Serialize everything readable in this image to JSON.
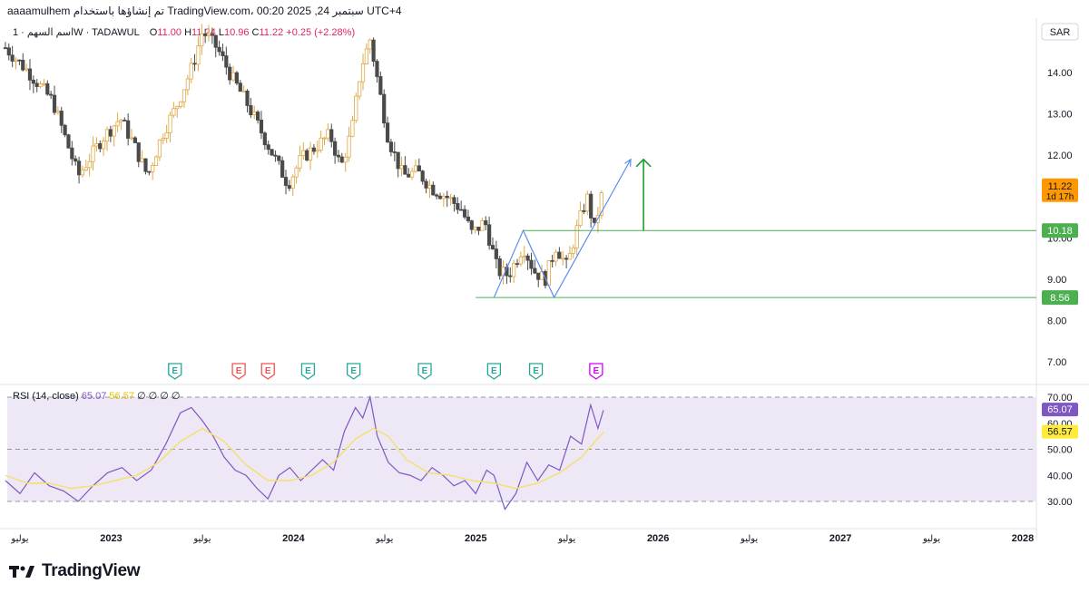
{
  "header": {
    "topline": "aaaamulhem تم إنشاؤها باستخدام TradingView.com، 00:20 2025 ,24 سبتمبر UTC+4",
    "symbol": "اسم السهم · 1W · TADAWUL",
    "open_label": "O",
    "open": "11.00",
    "high_label": "H",
    "high": "11.24",
    "low_label": "L",
    "low": "10.96",
    "close_label": "C",
    "close": "11.22",
    "change": "+0.25 (+2.28%)"
  },
  "rsi_legend": {
    "label": "RSI (14, close)",
    "value_rsi": "65.07",
    "value_ma": "56.57",
    "extras": "∅ ∅ ∅ ∅"
  },
  "branding": {
    "logo_text": "TradingView"
  },
  "colors": {
    "up": "#f7c878",
    "up_border": "#e0a847",
    "down": "#4a4a4a",
    "rsi": "#7e57c2",
    "rsi_ma": "#f5e06a",
    "rsi_band": "#ede7f6",
    "green": "#4caf50",
    "arrow_blue": "#5b8def",
    "label_orange": "#ff9800",
    "earn_green": "#26a69a",
    "earn_red": "#ef5350",
    "earn_purple": "#d500f9"
  },
  "chart_data": [
    {
      "type": "candlestick",
      "currency": "SAR",
      "y_ticks": [
        "14.00",
        "13.00",
        "12.00",
        "10.00",
        "9.00",
        "8.00",
        "7.00"
      ],
      "x_labels": [
        "يوليو",
        "2023",
        "يوليو",
        "2024",
        "يوليو",
        "2025",
        "يوليو",
        "2026",
        "يوليو",
        "2027",
        "يوليو",
        "2028"
      ],
      "x_label_dates": [
        2022.5,
        2023.0,
        2023.5,
        2024.0,
        2024.5,
        2025.0,
        2025.5,
        2026.0,
        2026.5,
        2027.0,
        2027.5,
        2028.0
      ],
      "ylim": [
        6.6,
        15.2
      ],
      "current_price": "11.22",
      "countdown": "1d 17h",
      "levels": [
        {
          "price": 10.18,
          "label": "10.18"
        },
        {
          "price": 8.56,
          "label": "8.56"
        }
      ],
      "path_points": [
        {
          "date": 2022.42,
          "price": 14.6
        },
        {
          "date": 2022.55,
          "price": 14.0
        },
        {
          "date": 2022.68,
          "price": 13.3
        },
        {
          "date": 2022.82,
          "price": 11.5
        },
        {
          "date": 2022.95,
          "price": 12.4
        },
        {
          "date": 2023.05,
          "price": 12.9
        },
        {
          "date": 2023.12,
          "price": 12.3
        },
        {
          "date": 2023.2,
          "price": 11.5
        },
        {
          "date": 2023.28,
          "price": 12.5
        },
        {
          "date": 2023.36,
          "price": 13.2
        },
        {
          "date": 2023.45,
          "price": 14.2
        },
        {
          "date": 2023.5,
          "price": 15.0
        },
        {
          "date": 2023.58,
          "price": 14.6
        },
        {
          "date": 2023.66,
          "price": 13.9
        },
        {
          "date": 2023.74,
          "price": 13.3
        },
        {
          "date": 2023.82,
          "price": 12.6
        },
        {
          "date": 2023.9,
          "price": 11.9
        },
        {
          "date": 2023.97,
          "price": 11.3
        },
        {
          "date": 2024.04,
          "price": 11.9
        },
        {
          "date": 2024.12,
          "price": 12.2
        },
        {
          "date": 2024.2,
          "price": 12.5
        },
        {
          "date": 2024.26,
          "price": 11.7
        },
        {
          "date": 2024.32,
          "price": 12.6
        },
        {
          "date": 2024.37,
          "price": 14.1
        },
        {
          "date": 2024.42,
          "price": 14.8
        },
        {
          "date": 2024.47,
          "price": 13.6
        },
        {
          "date": 2024.52,
          "price": 12.4
        },
        {
          "date": 2024.6,
          "price": 11.5
        },
        {
          "date": 2024.68,
          "price": 11.6
        },
        {
          "date": 2024.76,
          "price": 11.2
        },
        {
          "date": 2024.84,
          "price": 11.0
        },
        {
          "date": 2024.92,
          "price": 10.7
        },
        {
          "date": 2024.98,
          "price": 10.1
        },
        {
          "date": 2025.05,
          "price": 10.4
        },
        {
          "date": 2025.12,
          "price": 9.2
        },
        {
          "date": 2025.18,
          "price": 9.1
        },
        {
          "date": 2025.26,
          "price": 9.8
        },
        {
          "date": 2025.32,
          "price": 9.2
        },
        {
          "date": 2025.38,
          "price": 9.0
        },
        {
          "date": 2025.44,
          "price": 9.8
        },
        {
          "date": 2025.5,
          "price": 9.3
        },
        {
          "date": 2025.56,
          "price": 10.3
        },
        {
          "date": 2025.61,
          "price": 11.0
        },
        {
          "date": 2025.65,
          "price": 10.2
        },
        {
          "date": 2025.7,
          "price": 11.22
        }
      ],
      "earnings_markers": [
        {
          "date": 2023.35,
          "label": "E",
          "color": "green"
        },
        {
          "date": 2023.7,
          "label": "E",
          "color": "red"
        },
        {
          "date": 2023.86,
          "label": "E",
          "color": "red"
        },
        {
          "date": 2024.08,
          "label": "E",
          "color": "green"
        },
        {
          "date": 2024.33,
          "label": "E",
          "color": "green"
        },
        {
          "date": 2024.72,
          "label": "E",
          "color": "green"
        },
        {
          "date": 2025.1,
          "label": "E",
          "color": "green"
        },
        {
          "date": 2025.33,
          "label": "E",
          "color": "green"
        },
        {
          "date": 2025.66,
          "label": "E",
          "color": "purple"
        }
      ],
      "annotations": {
        "double_bottom": [
          {
            "date": 2025.1,
            "price": 8.56
          },
          {
            "date": 2025.26,
            "price": 10.18
          },
          {
            "date": 2025.43,
            "price": 8.56
          },
          {
            "date": 2025.85,
            "price": 11.9
          }
        ],
        "green_arrow": {
          "date": 2025.92,
          "from": 10.18,
          "to": 11.9
        },
        "level_line_starts": {
          "10.18": 2025.26,
          "8.56": 2025.0
        }
      }
    },
    {
      "type": "line",
      "title": "RSI (14, close)",
      "y_ticks": [
        "70.00",
        "60.00",
        "50.00",
        "40.00",
        "30.00"
      ],
      "ylim": [
        20,
        72
      ],
      "band": [
        30,
        70
      ],
      "middle": 50,
      "rsi_last": "65.07",
      "ma_last": "56.57",
      "series": [
        {
          "values": [
            {
              "date": 2022.42,
              "value": 38
            },
            {
              "date": 2022.5,
              "value": 33
            },
            {
              "date": 2022.58,
              "value": 41
            },
            {
              "date": 2022.66,
              "value": 36
            },
            {
              "date": 2022.74,
              "value": 34
            },
            {
              "date": 2022.82,
              "value": 30
            },
            {
              "date": 2022.9,
              "value": 36
            },
            {
              "date": 2022.98,
              "value": 41
            },
            {
              "date": 2023.06,
              "value": 43
            },
            {
              "date": 2023.14,
              "value": 38
            },
            {
              "date": 2023.22,
              "value": 42
            },
            {
              "date": 2023.3,
              "value": 52
            },
            {
              "date": 2023.38,
              "value": 64
            },
            {
              "date": 2023.44,
              "value": 66
            },
            {
              "date": 2023.5,
              "value": 61
            },
            {
              "date": 2023.56,
              "value": 55
            },
            {
              "date": 2023.62,
              "value": 47
            },
            {
              "date": 2023.68,
              "value": 42
            },
            {
              "date": 2023.74,
              "value": 40
            },
            {
              "date": 2023.8,
              "value": 35
            },
            {
              "date": 2023.86,
              "value": 31
            },
            {
              "date": 2023.92,
              "value": 40
            },
            {
              "date": 2023.98,
              "value": 43
            },
            {
              "date": 2024.04,
              "value": 38
            },
            {
              "date": 2024.1,
              "value": 42
            },
            {
              "date": 2024.16,
              "value": 46
            },
            {
              "date": 2024.22,
              "value": 42
            },
            {
              "date": 2024.28,
              "value": 57
            },
            {
              "date": 2024.34,
              "value": 66
            },
            {
              "date": 2024.38,
              "value": 62
            },
            {
              "date": 2024.42,
              "value": 70
            },
            {
              "date": 2024.46,
              "value": 55
            },
            {
              "date": 2024.52,
              "value": 45
            },
            {
              "date": 2024.58,
              "value": 41
            },
            {
              "date": 2024.64,
              "value": 40
            },
            {
              "date": 2024.7,
              "value": 38
            },
            {
              "date": 2024.76,
              "value": 43
            },
            {
              "date": 2024.82,
              "value": 40
            },
            {
              "date": 2024.88,
              "value": 36
            },
            {
              "date": 2024.94,
              "value": 38
            },
            {
              "date": 2025.0,
              "value": 33
            },
            {
              "date": 2025.06,
              "value": 42
            },
            {
              "date": 2025.1,
              "value": 40
            },
            {
              "date": 2025.16,
              "value": 27
            },
            {
              "date": 2025.22,
              "value": 33
            },
            {
              "date": 2025.28,
              "value": 45
            },
            {
              "date": 2025.34,
              "value": 38
            },
            {
              "date": 2025.4,
              "value": 44
            },
            {
              "date": 2025.46,
              "value": 42
            },
            {
              "date": 2025.52,
              "value": 55
            },
            {
              "date": 2025.58,
              "value": 52
            },
            {
              "date": 2025.63,
              "value": 67
            },
            {
              "date": 2025.67,
              "value": 58
            },
            {
              "date": 2025.7,
              "value": 65
            }
          ]
        },
        {
          "values": [
            {
              "date": 2022.42,
              "value": 40
            },
            {
              "date": 2022.54,
              "value": 37
            },
            {
              "date": 2022.66,
              "value": 37
            },
            {
              "date": 2022.78,
              "value": 35
            },
            {
              "date": 2022.9,
              "value": 36
            },
            {
              "date": 2023.02,
              "value": 38
            },
            {
              "date": 2023.14,
              "value": 40
            },
            {
              "date": 2023.26,
              "value": 45
            },
            {
              "date": 2023.38,
              "value": 53
            },
            {
              "date": 2023.5,
              "value": 58
            },
            {
              "date": 2023.62,
              "value": 53
            },
            {
              "date": 2023.74,
              "value": 44
            },
            {
              "date": 2023.86,
              "value": 38
            },
            {
              "date": 2023.98,
              "value": 38
            },
            {
              "date": 2024.1,
              "value": 40
            },
            {
              "date": 2024.22,
              "value": 45
            },
            {
              "date": 2024.34,
              "value": 54
            },
            {
              "date": 2024.44,
              "value": 58
            },
            {
              "date": 2024.52,
              "value": 55
            },
            {
              "date": 2024.62,
              "value": 46
            },
            {
              "date": 2024.74,
              "value": 41
            },
            {
              "date": 2024.86,
              "value": 40
            },
            {
              "date": 2024.98,
              "value": 38
            },
            {
              "date": 2025.1,
              "value": 37
            },
            {
              "date": 2025.22,
              "value": 35
            },
            {
              "date": 2025.34,
              "value": 37
            },
            {
              "date": 2025.46,
              "value": 41
            },
            {
              "date": 2025.58,
              "value": 47
            },
            {
              "date": 2025.7,
              "value": 56.57
            }
          ]
        }
      ]
    }
  ]
}
